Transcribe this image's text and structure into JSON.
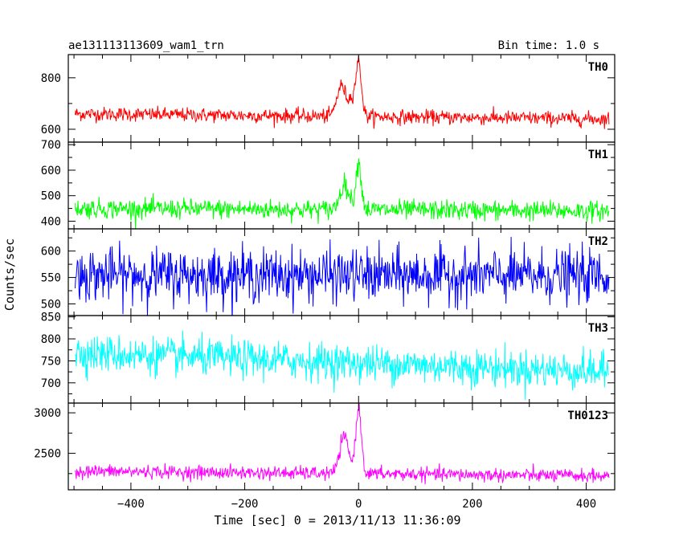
{
  "header": {
    "title": "ae131113113609_wam1_trn",
    "bin_time": "Bin time: 1.0 s"
  },
  "chart_data": [
    {
      "type": "line",
      "series": [
        {
          "name": "TH0",
          "color": "#ff0000",
          "baseline": 660,
          "end_baseline": 640,
          "noise": 25,
          "burst": [
            [
              -30,
              120,
              8
            ],
            [
              0,
              210,
              5
            ],
            [
              -12,
              60,
              5
            ]
          ]
        }
      ],
      "xlim": [
        -510,
        450
      ],
      "ylim": [
        550,
        890
      ],
      "yticks": [
        600,
        800
      ],
      "ytick_labels": [
        "600",
        "800"
      ]
    },
    {
      "type": "line",
      "series": [
        {
          "name": "TH1",
          "color": "#00ff00",
          "baseline": 450,
          "end_baseline": 440,
          "noise": 35,
          "burst": [
            [
              -25,
              100,
              8
            ],
            [
              0,
              180,
              5
            ]
          ]
        }
      ],
      "xlim": [
        -510,
        450
      ],
      "ylim": [
        370,
        710
      ],
      "yticks": [
        400,
        500,
        600,
        700
      ],
      "ytick_labels": [
        "400",
        "500",
        "600",
        "700"
      ]
    },
    {
      "type": "line",
      "series": [
        {
          "name": "TH2",
          "color": "#0000ff",
          "baseline": 555,
          "end_baseline": 553,
          "noise": 45,
          "burst": []
        }
      ],
      "xlim": [
        -510,
        450
      ],
      "ylim": [
        478,
        642
      ],
      "yticks": [
        500,
        550,
        600
      ],
      "ytick_labels": [
        "500",
        "550",
        "600"
      ]
    },
    {
      "type": "line",
      "series": [
        {
          "name": "TH3",
          "color": "#00ffff",
          "baseline": 768,
          "end_baseline": 725,
          "noise": 38,
          "burst": []
        }
      ],
      "xlim": [
        -510,
        450
      ],
      "ylim": [
        654,
        853
      ],
      "yticks": [
        700,
        750,
        800,
        850
      ],
      "ytick_labels": [
        "700",
        "750",
        "800",
        "850"
      ]
    },
    {
      "type": "line",
      "series": [
        {
          "name": "TH0123",
          "color": "#ff00ff",
          "baseline": 2280,
          "end_baseline": 2220,
          "noise": 75,
          "burst": [
            [
              -25,
              450,
              8
            ],
            [
              0,
              800,
              5
            ]
          ]
        }
      ],
      "xlim": [
        -510,
        450
      ],
      "ylim": [
        2050,
        3120
      ],
      "yticks": [
        2500,
        3000
      ],
      "ytick_labels": [
        "2500",
        "3000"
      ]
    }
  ],
  "x_axis": {
    "label": "Time [sec] 0 = 2013/11/13 11:36:09",
    "ticks": [
      -400,
      -200,
      0,
      200,
      400
    ],
    "tick_labels": [
      "−400",
      "−200",
      "0",
      "200",
      "400"
    ]
  },
  "y_axis": {
    "label": "Counts/sec"
  }
}
